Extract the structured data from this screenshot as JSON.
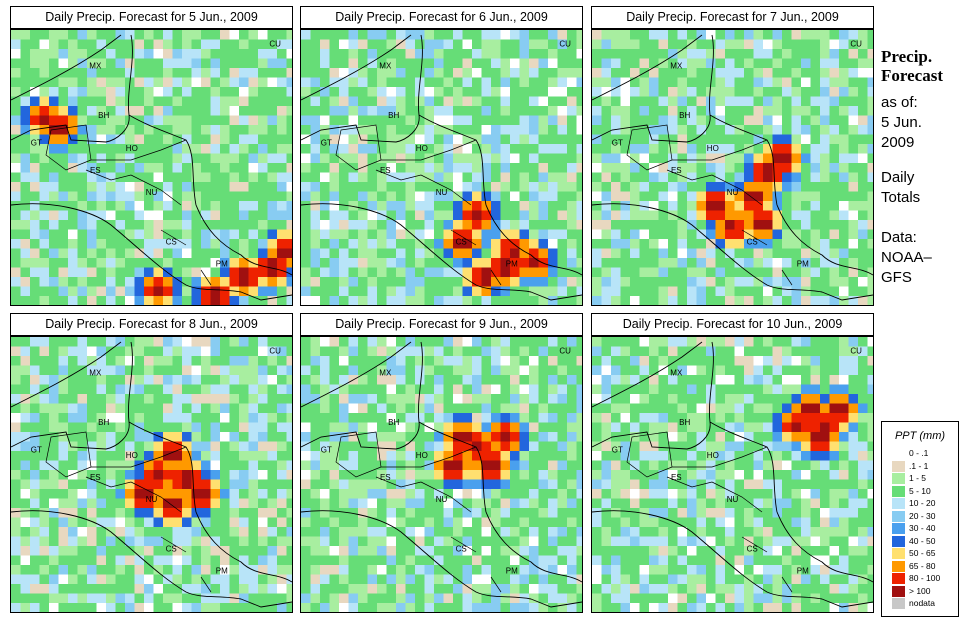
{
  "panels": [
    {
      "title": "Daily Precip. Forecast for  5 Jun., 2009",
      "hot": [
        [
          0.1,
          0.3
        ],
        [
          0.15,
          0.33
        ],
        [
          0.5,
          0.92
        ],
        [
          0.8,
          0.88
        ],
        [
          0.9,
          0.85
        ],
        [
          0.7,
          0.95
        ],
        [
          0.95,
          0.78
        ]
      ]
    },
    {
      "title": "Daily Precip. Forecast for  6 Jun., 2009",
      "hot": [
        [
          0.55,
          0.75
        ],
        [
          0.7,
          0.85
        ],
        [
          0.62,
          0.88
        ],
        [
          0.8,
          0.82
        ],
        [
          0.6,
          0.65
        ],
        [
          0.72,
          0.78
        ]
      ]
    },
    {
      "title": "Daily Precip. Forecast for  7 Jun., 2009",
      "hot": [
        [
          0.55,
          0.6
        ],
        [
          0.6,
          0.5
        ],
        [
          0.58,
          0.68
        ],
        [
          0.42,
          0.62
        ],
        [
          0.65,
          0.45
        ],
        [
          0.48,
          0.7
        ]
      ]
    },
    {
      "title": "Daily Precip. Forecast for  8 Jun., 2009",
      "hot": [
        [
          0.55,
          0.4
        ],
        [
          0.6,
          0.5
        ],
        [
          0.55,
          0.6
        ],
        [
          0.5,
          0.48
        ],
        [
          0.65,
          0.55
        ],
        [
          0.45,
          0.55
        ]
      ]
    },
    {
      "title": "Daily Precip. Forecast for  9 Jun., 2009",
      "hot": [
        [
          0.6,
          0.38
        ],
        [
          0.55,
          0.35
        ],
        [
          0.7,
          0.35
        ],
        [
          0.65,
          0.45
        ],
        [
          0.52,
          0.45
        ]
      ]
    },
    {
      "title": "Daily Precip. Forecast for  10 Jun., 2009",
      "hot": [
        [
          0.75,
          0.25
        ],
        [
          0.8,
          0.3
        ],
        [
          0.7,
          0.3
        ],
        [
          0.85,
          0.25
        ],
        [
          0.78,
          0.35
        ]
      ]
    }
  ],
  "country_labels": [
    "MX",
    "BH",
    "GT",
    "HO",
    "ES",
    "NU",
    "CS",
    "PM",
    "CU"
  ],
  "side": {
    "title_line1": "Precip.",
    "title_line2": "Forecast",
    "asof_1": "as of:",
    "asof_2": "5 Jun.",
    "asof_3": "2009",
    "totals_1": "Daily",
    "totals_2": "Totals",
    "data_1": "Data:",
    "data_2": "NOAA–",
    "data_3": "GFS"
  },
  "legend": {
    "title": "PPT (mm)",
    "items": [
      {
        "label": "0 - .1",
        "color": "#ffffff"
      },
      {
        "label": ".1 - 1",
        "color": "#e8d8c0"
      },
      {
        "label": "1 - 5",
        "color": "#a8eea0"
      },
      {
        "label": "5 - 10",
        "color": "#66dd77"
      },
      {
        "label": "10 - 20",
        "color": "#b8e4f8"
      },
      {
        "label": "20 - 30",
        "color": "#88ccf2"
      },
      {
        "label": "30 - 40",
        "color": "#4aa0ee"
      },
      {
        "label": "40 - 50",
        "color": "#2266dd"
      },
      {
        "label": "50 - 65",
        "color": "#ffe070"
      },
      {
        "label": "65 - 80",
        "color": "#ff9900"
      },
      {
        "label": "80 - 100",
        "color": "#ee2200"
      },
      {
        "label": "> 100",
        "color": "#a01010"
      },
      {
        "label": "nodata",
        "color": "#c8c8c8"
      }
    ]
  }
}
